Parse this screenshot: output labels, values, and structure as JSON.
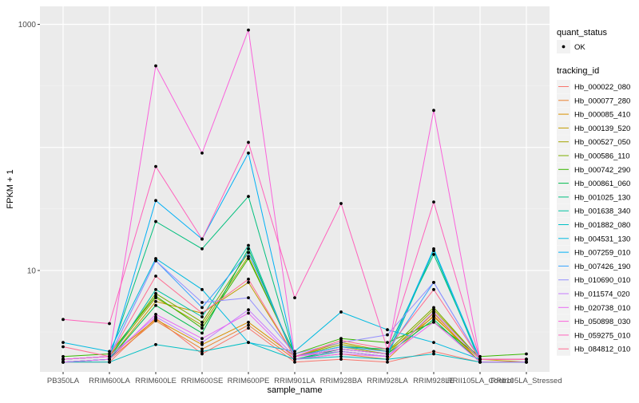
{
  "chart_data": {
    "type": "line",
    "title": "",
    "xlabel": "sample_name",
    "ylabel": "FPKM + 1",
    "y_scale": "log10",
    "ylim": [
      1.5,
      1400
    ],
    "grid": true,
    "legend_position": "right",
    "background_color": "#ebebeb",
    "categories": [
      "PB350LA",
      "RRIM600LA",
      "RRIM600LE",
      "RRIM600SE",
      "RRIM600PE",
      "RRIM901LA",
      "RRIM928BA",
      "RRIM928LA",
      "RRIM928LE",
      "RRII105LA_Control",
      "RRII105LA_Stressed"
    ],
    "y_ticks": [
      {
        "value": 10,
        "label": "10"
      },
      {
        "value": 1000,
        "label": "1000"
      }
    ],
    "marker_legend": {
      "title": "quant_status",
      "items": [
        "OK"
      ]
    },
    "series_legend_title": "tracking_id",
    "series": [
      {
        "name": "Hb_000022_080",
        "color": "#F8766D",
        "values": [
          1.8,
          1.8,
          4.1,
          2.1,
          3.4,
          1.8,
          1.9,
          1.8,
          2.2,
          1.8,
          1.8
        ]
      },
      {
        "name": "Hb_000077_280",
        "color": "#EA8331",
        "values": [
          1.8,
          1.9,
          3.9,
          2.3,
          3.6,
          1.9,
          2.1,
          1.9,
          4.3,
          1.8,
          1.8
        ]
      },
      {
        "name": "Hb_000085_410",
        "color": "#D89000",
        "values": [
          1.9,
          2.0,
          4.0,
          2.5,
          3.8,
          2.0,
          2.2,
          2.0,
          4.5,
          1.8,
          1.8
        ]
      },
      {
        "name": "Hb_000139_520",
        "color": "#C09B00",
        "values": [
          1.8,
          1.9,
          5.6,
          4.5,
          8.0,
          2.0,
          2.6,
          2.2,
          4.2,
          1.9,
          1.8
        ]
      },
      {
        "name": "Hb_000527_050",
        "color": "#A3A500",
        "values": [
          1.9,
          2.0,
          6.0,
          3.6,
          13.0,
          2.0,
          2.4,
          2.1,
          4.8,
          1.9,
          1.9
        ]
      },
      {
        "name": "Hb_000586_110",
        "color": "#7CAE00",
        "values": [
          1.9,
          2.0,
          6.5,
          3.8,
          14.0,
          2.0,
          2.5,
          2.2,
          5.0,
          1.9,
          1.9
        ]
      },
      {
        "name": "Hb_000742_290",
        "color": "#39B600",
        "values": [
          2.0,
          2.1,
          6.2,
          3.4,
          12.5,
          2.1,
          2.8,
          2.6,
          3.8,
          2.0,
          2.1
        ]
      },
      {
        "name": "Hb_000861_060",
        "color": "#00BB4E",
        "values": [
          1.8,
          1.9,
          5.2,
          3.1,
          15.0,
          1.9,
          2.3,
          2.1,
          4.0,
          1.8,
          1.8
        ]
      },
      {
        "name": "Hb_001025_130",
        "color": "#00BF7D",
        "values": [
          1.9,
          2.0,
          25.0,
          15.0,
          40.0,
          2.0,
          2.4,
          2.3,
          13.5,
          1.9,
          1.9
        ]
      },
      {
        "name": "Hb_001638_340",
        "color": "#00C1A3",
        "values": [
          1.8,
          1.9,
          7.0,
          4.2,
          16.0,
          1.9,
          2.2,
          2.0,
          14.5,
          1.8,
          1.8
        ]
      },
      {
        "name": "Hb_001882_080",
        "color": "#00BFC4",
        "values": [
          1.8,
          1.8,
          2.5,
          2.2,
          2.6,
          1.9,
          2.0,
          1.9,
          2.1,
          1.8,
          1.8
        ]
      },
      {
        "name": "Hb_004531_130",
        "color": "#00BAE0",
        "values": [
          2.6,
          2.2,
          12.5,
          7.0,
          2.6,
          2.2,
          4.6,
          3.3,
          2.6,
          1.9,
          1.9
        ]
      },
      {
        "name": "Hb_007259_010",
        "color": "#00B0F6",
        "values": [
          1.8,
          1.9,
          37.0,
          18.0,
          90.0,
          2.0,
          2.3,
          2.1,
          15.0,
          1.9,
          1.9
        ]
      },
      {
        "name": "Hb_007426_190",
        "color": "#35A2FF",
        "values": [
          1.9,
          2.0,
          12.0,
          5.0,
          14.0,
          2.0,
          2.4,
          2.2,
          8.0,
          1.9,
          1.9
        ]
      },
      {
        "name": "Hb_010690_010",
        "color": "#9590FF",
        "values": [
          1.9,
          2.0,
          12.0,
          5.5,
          6.0,
          2.1,
          2.6,
          3.0,
          8.0,
          1.9,
          1.9
        ]
      },
      {
        "name": "Hb_011574_020",
        "color": "#C77CFF",
        "values": [
          1.9,
          2.0,
          4.2,
          2.6,
          4.8,
          2.0,
          2.2,
          2.0,
          4.6,
          1.9,
          1.9
        ]
      },
      {
        "name": "Hb_020738_010",
        "color": "#E76BF3",
        "values": [
          1.8,
          1.9,
          4.4,
          2.8,
          4.5,
          1.9,
          2.1,
          2.0,
          3.8,
          1.8,
          1.8
        ]
      },
      {
        "name": "Hb_050898_030",
        "color": "#FA62DB",
        "values": [
          1.9,
          2.0,
          460.0,
          90.0,
          900.0,
          2.0,
          2.3,
          2.1,
          200.0,
          1.9,
          1.9
        ]
      },
      {
        "name": "Hb_059275_010",
        "color": "#FF62BC",
        "values": [
          4.0,
          3.7,
          70.0,
          18.0,
          110.0,
          6.0,
          35.0,
          2.3,
          36.0,
          1.9,
          1.9
        ]
      },
      {
        "name": "Hb_084812_010",
        "color": "#FF6C91",
        "values": [
          2.4,
          2.0,
          9.0,
          4.5,
          8.5,
          2.0,
          2.7,
          2.3,
          7.0,
          1.9,
          1.9
        ]
      }
    ]
  }
}
